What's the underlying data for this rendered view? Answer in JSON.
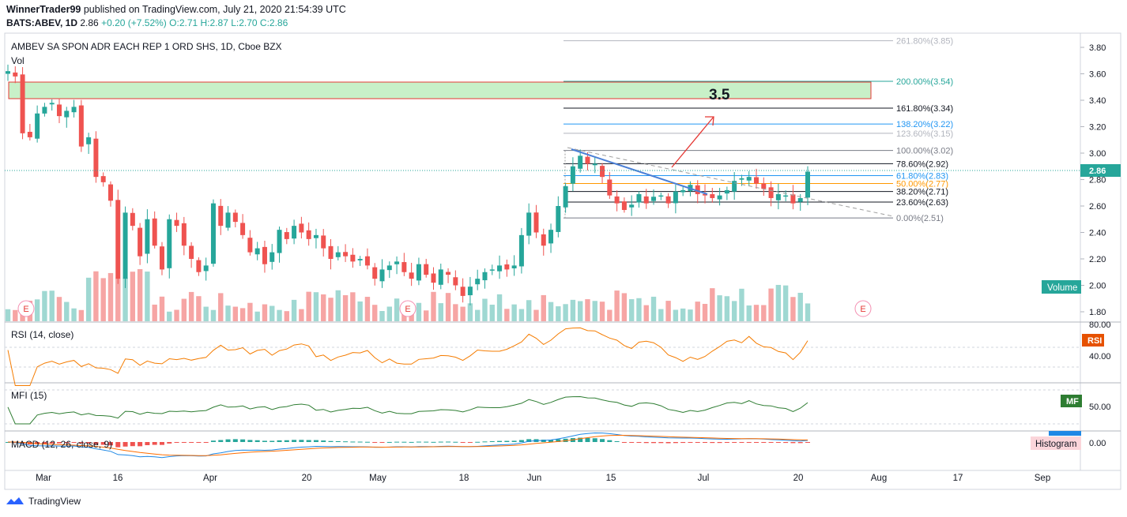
{
  "header": {
    "author": "WinnerTrader99",
    "published": "published on TradingView.com, July 21, 2020 21:54:39 UTC",
    "symbol_line_prefix": "BATS:ABEV, 1D",
    "price": "2.86",
    "change": "+0.20 (+7.52%)",
    "ohlc_text": "O:2.71  H:2.87  L:2.70  C:2.86"
  },
  "chart_title": "AMBEV SA SPON ADR EACH REP 1 ORD SHS, 1D, Cboe BZX",
  "vol_label": "Vol",
  "annotation_text": "3.5",
  "current_price_tag": "2.86",
  "volume_tag": "Volume",
  "rsi": {
    "label": "RSI (14, close)",
    "tag": "RSI",
    "axis": [
      "80.00",
      "40.00"
    ]
  },
  "mfi": {
    "label": "MFI (15)",
    "tag": "MF",
    "axis": [
      "50.00"
    ]
  },
  "macd": {
    "label": "MACD (12, 26, close, 9)",
    "tag": "Histogram",
    "axis": [
      "0.00"
    ]
  },
  "footer": {
    "brand": "TradingView"
  },
  "colors": {
    "up": "#26a69a",
    "down": "#ef5350",
    "rsi": "#f57c00",
    "mfi": "#2e7d32",
    "macd": "#1e88e5",
    "signal": "#ff6d00",
    "zone_fill": "#c8f0c8",
    "zone_border": "#e53935"
  },
  "chart_data": {
    "type": "candlestick",
    "ylim": [
      1.72,
      3.9
    ],
    "y_ticks": [
      "3.80",
      "3.60",
      "3.40",
      "3.20",
      "3.00",
      "2.80",
      "2.60",
      "2.40",
      "2.20",
      "2.00",
      "1.80"
    ],
    "x_ticks": [
      "Mar",
      "16",
      "Apr",
      "20",
      "May",
      "18",
      "Jun",
      "15",
      "Jul",
      "20",
      "Aug",
      "17",
      "Sep"
    ],
    "earnings_markers": [
      "E",
      "E",
      "E"
    ],
    "fib_levels": [
      {
        "label": "261.80%(3.85)",
        "value": 3.85,
        "color": "#b2b5be"
      },
      {
        "label": "200.00%(3.54)",
        "value": 3.54,
        "color": "#26a69a"
      },
      {
        "label": "161.80%(3.34)",
        "value": 3.34,
        "color": "#131722"
      },
      {
        "label": "138.20%(3.22)",
        "value": 3.22,
        "color": "#2196f3"
      },
      {
        "label": "123.60%(3.15)",
        "value": 3.15,
        "color": "#b2b5be"
      },
      {
        "label": "100.00%(3.02)",
        "value": 3.02,
        "color": "#787b86"
      },
      {
        "label": "78.60%(2.92)",
        "value": 2.92,
        "color": "#131722"
      },
      {
        "label": "61.80%(2.83)",
        "value": 2.83,
        "color": "#2196f3"
      },
      {
        "label": "50.00%(2.77)",
        "value": 2.77,
        "color": "#ff9800"
      },
      {
        "label": "38.20%(2.71)",
        "value": 2.71,
        "color": "#131722"
      },
      {
        "label": "23.60%(2.63)",
        "value": 2.63,
        "color": "#131722"
      },
      {
        "label": "0.00%(2.51)",
        "value": 2.51,
        "color": "#787b86"
      }
    ],
    "closes": [
      3.62,
      3.58,
      3.15,
      3.12,
      3.3,
      3.35,
      3.38,
      3.28,
      3.32,
      3.35,
      3.05,
      3.12,
      2.82,
      2.78,
      2.64,
      2.05,
      2.55,
      2.45,
      2.22,
      2.5,
      2.3,
      2.12,
      2.5,
      2.45,
      2.3,
      2.2,
      2.1,
      2.15,
      2.62,
      2.45,
      2.55,
      2.48,
      2.38,
      2.25,
      2.28,
      2.16,
      2.25,
      2.42,
      2.35,
      2.45,
      2.4,
      2.35,
      2.38,
      2.28,
      2.2,
      2.25,
      2.22,
      2.18,
      2.2,
      2.15,
      2.05,
      2.12,
      2.15,
      2.18,
      2.1,
      2.05,
      2.16,
      2.08,
      2.02,
      2.12,
      2.08,
      2.0,
      1.92,
      1.99,
      2.05,
      2.1,
      2.12,
      2.15,
      2.12,
      2.15,
      2.38,
      2.55,
      2.4,
      2.3,
      2.42,
      2.6,
      2.75,
      2.9,
      2.98,
      2.92,
      2.92,
      2.82,
      2.68,
      2.62,
      2.57,
      2.61,
      2.69,
      2.62,
      2.67,
      2.68,
      2.62,
      2.71,
      2.72,
      2.76,
      2.69,
      2.68,
      2.66,
      2.68,
      2.72,
      2.79,
      2.81,
      2.82,
      2.77,
      2.73,
      2.66,
      2.69,
      2.68,
      2.62,
      2.66,
      2.86
    ],
    "earnings_dates": [
      "2020-03-03",
      "2020-05-06",
      "2020-07-30"
    ]
  }
}
